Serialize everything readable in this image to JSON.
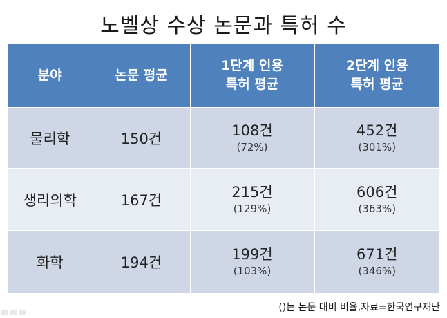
{
  "title": "노벨상 수상 논문과 특허 수",
  "table": {
    "headers": [
      {
        "line1": "분야",
        "line2": ""
      },
      {
        "line1": "논문 평균",
        "line2": ""
      },
      {
        "line1": "1단계 인용",
        "line2": "특허 평균"
      },
      {
        "line1": "2단계 인용",
        "line2": "특허 평균"
      }
    ],
    "rows": [
      {
        "field": "물리학",
        "papers": "150건",
        "stage1": "108건",
        "stage1_pct": "(72%)",
        "stage2": "452건",
        "stage2_pct": "(301%)"
      },
      {
        "field": "생리의학",
        "papers": "167건",
        "stage1": "215건",
        "stage1_pct": "(129%)",
        "stage2": "606건",
        "stage2_pct": "(363%)"
      },
      {
        "field": "화학",
        "papers": "194건",
        "stage1": "199건",
        "stage1_pct": "(103%)",
        "stage2": "671건",
        "stage2_pct": "(346%)"
      }
    ]
  },
  "note": "()는 논문 대비 비율,자료=한국연구재단",
  "colors": {
    "header_bg": "#4f81bd",
    "row_odd_bg": "#cfd7e6",
    "row_even_bg": "#e8edf4"
  }
}
